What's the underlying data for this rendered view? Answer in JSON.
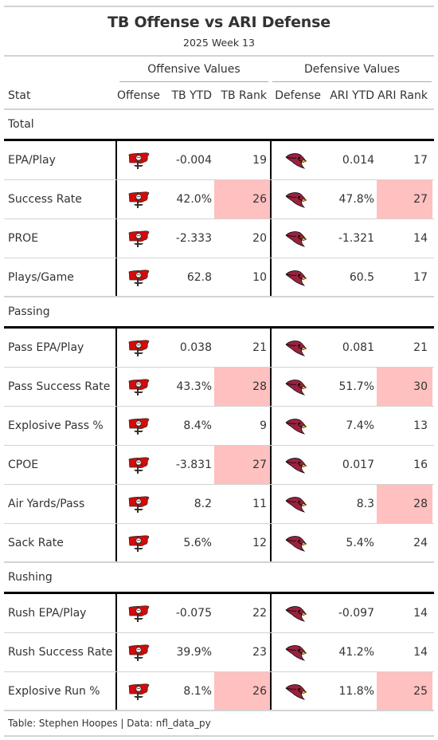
{
  "title": "TB Offense vs ARI Defense",
  "subtitle": "2025 Week 13",
  "spanners": {
    "offense": "Offensive Values",
    "defense": "Defensive Values"
  },
  "columns": {
    "stat": "Stat",
    "offense": "Offense",
    "off_ytd": "TB YTD",
    "off_rank": "TB Rank",
    "defense": "Defense",
    "def_ytd": "ARI YTD",
    "def_rank": "ARI Rank"
  },
  "colors": {
    "highlight": "#ffc0c0",
    "tb_red": "#d50a0a",
    "ari_red": "#97233f"
  },
  "icons": {
    "offense": "buccaneers-logo-icon",
    "defense": "cardinals-logo-icon"
  },
  "groups": [
    {
      "name": "Total",
      "rows": [
        {
          "stat": "EPA/Play",
          "off_ytd": "-0.004",
          "off_rank": "19",
          "def_ytd": "0.014",
          "def_rank": "17",
          "off_bad": false,
          "def_bad": false
        },
        {
          "stat": "Success Rate",
          "off_ytd": "42.0%",
          "off_rank": "26",
          "def_ytd": "47.8%",
          "def_rank": "27",
          "off_bad": true,
          "def_bad": true
        },
        {
          "stat": "PROE",
          "off_ytd": "-2.333",
          "off_rank": "20",
          "def_ytd": "-1.321",
          "def_rank": "14",
          "off_bad": false,
          "def_bad": false
        },
        {
          "stat": "Plays/Game",
          "off_ytd": "62.8",
          "off_rank": "10",
          "def_ytd": "60.5",
          "def_rank": "17",
          "off_bad": false,
          "def_bad": false
        }
      ]
    },
    {
      "name": "Passing",
      "rows": [
        {
          "stat": "Pass EPA/Play",
          "off_ytd": "0.038",
          "off_rank": "21",
          "def_ytd": "0.081",
          "def_rank": "21",
          "off_bad": false,
          "def_bad": false
        },
        {
          "stat": "Pass Success Rate",
          "off_ytd": "43.3%",
          "off_rank": "28",
          "def_ytd": "51.7%",
          "def_rank": "30",
          "off_bad": true,
          "def_bad": true
        },
        {
          "stat": "Explosive Pass %",
          "off_ytd": "8.4%",
          "off_rank": "9",
          "def_ytd": "7.4%",
          "def_rank": "13",
          "off_bad": false,
          "def_bad": false
        },
        {
          "stat": "CPOE",
          "off_ytd": "-3.831",
          "off_rank": "27",
          "def_ytd": "0.017",
          "def_rank": "16",
          "off_bad": true,
          "def_bad": false
        },
        {
          "stat": "Air Yards/Pass",
          "off_ytd": "8.2",
          "off_rank": "11",
          "def_ytd": "8.3",
          "def_rank": "28",
          "off_bad": false,
          "def_bad": true
        },
        {
          "stat": "Sack Rate",
          "off_ytd": "5.6%",
          "off_rank": "12",
          "def_ytd": "5.4%",
          "def_rank": "24",
          "off_bad": false,
          "def_bad": false
        }
      ]
    },
    {
      "name": "Rushing",
      "rows": [
        {
          "stat": "Rush EPA/Play",
          "off_ytd": "-0.075",
          "off_rank": "22",
          "def_ytd": "-0.097",
          "def_rank": "14",
          "off_bad": false,
          "def_bad": false
        },
        {
          "stat": "Rush Success Rate",
          "off_ytd": "39.9%",
          "off_rank": "23",
          "def_ytd": "41.2%",
          "def_rank": "14",
          "off_bad": false,
          "def_bad": false
        },
        {
          "stat": "Explosive Run %",
          "off_ytd": "8.1%",
          "off_rank": "26",
          "def_ytd": "11.8%",
          "def_rank": "25",
          "off_bad": true,
          "def_bad": true
        }
      ]
    }
  ],
  "footer": "Table: Stephen Hoopes | Data: nfl_data_py"
}
